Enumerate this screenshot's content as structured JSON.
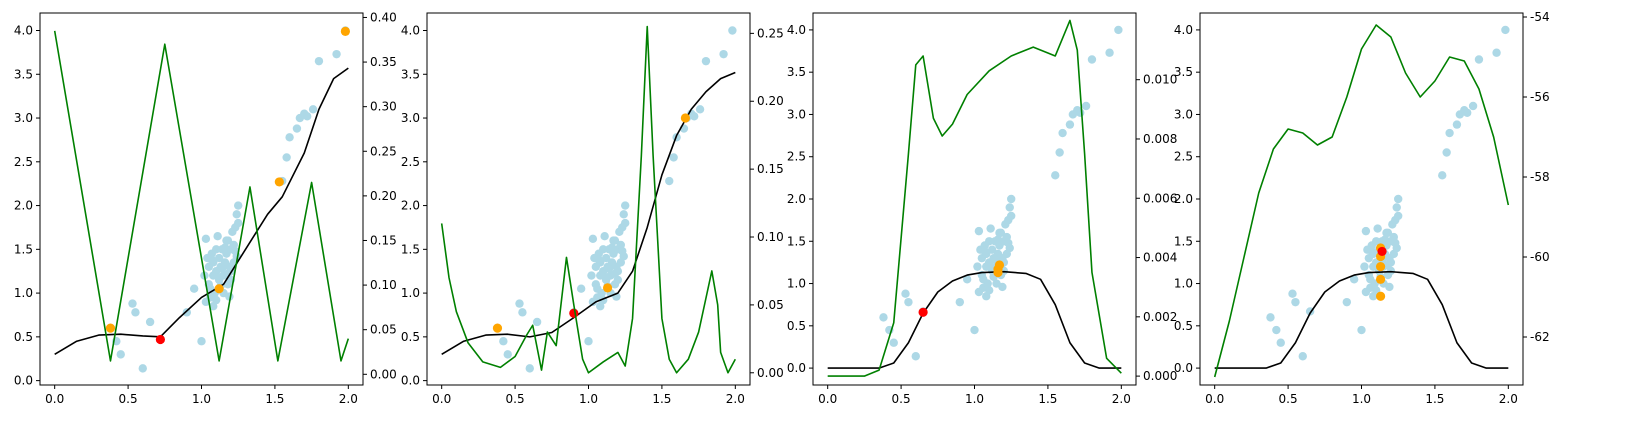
{
  "chart_data": [
    {
      "type": "line",
      "grid": false,
      "xlim": [
        -0.1,
        2.1
      ],
      "ylim": [
        -0.05,
        4.2
      ],
      "y2lim": [
        -0.012,
        0.405
      ],
      "x_ticks": [
        "0.0",
        "0.5",
        "1.0",
        "1.5",
        "2.0"
      ],
      "y_ticks": [
        "0.0",
        "0.5",
        "1.0",
        "1.5",
        "2.0",
        "2.5",
        "3.0",
        "3.5",
        "4.0"
      ],
      "y2_ticks": [
        "0.00",
        "0.05",
        "0.10",
        "0.15",
        "0.20",
        "0.25",
        "0.30",
        "0.35",
        "0.40"
      ],
      "colors": {
        "scatter": "#add8e6",
        "mean": "#000000",
        "acquisition": "#008000",
        "observed": "#ffa500",
        "next": "#ff0000"
      },
      "mean": {
        "x": [
          0.0,
          0.15,
          0.3,
          0.45,
          0.6,
          0.72,
          0.85,
          1.0,
          1.15,
          1.3,
          1.45,
          1.55,
          1.7,
          1.8,
          1.9,
          2.0
        ],
        "y": [
          0.3,
          0.45,
          0.52,
          0.53,
          0.51,
          0.5,
          0.72,
          0.95,
          1.1,
          1.5,
          1.9,
          2.1,
          2.6,
          3.1,
          3.45,
          3.57
        ]
      },
      "acquisition": {
        "x": [
          0.0,
          0.38,
          0.75,
          1.12,
          1.33,
          1.52,
          1.75,
          1.95,
          2.0
        ],
        "y": [
          0.385,
          0.015,
          0.37,
          0.015,
          0.21,
          0.015,
          0.215,
          0.015,
          0.04
        ]
      },
      "observed": {
        "x": [
          0.38,
          1.12,
          1.53,
          1.98
        ],
        "y": [
          0.6,
          1.05,
          2.27,
          3.99
        ]
      },
      "next": {
        "x": [
          0.72
        ],
        "y": [
          0.47
        ]
      }
    },
    {
      "type": "line",
      "grid": false,
      "xlim": [
        -0.1,
        2.1
      ],
      "ylim": [
        -0.05,
        4.2
      ],
      "y2lim": [
        -0.009,
        0.265
      ],
      "x_ticks": [
        "0.0",
        "0.5",
        "1.0",
        "1.5",
        "2.0"
      ],
      "y_ticks": [
        "0.0",
        "0.5",
        "1.0",
        "1.5",
        "2.0",
        "2.5",
        "3.0",
        "3.5",
        "4.0"
      ],
      "y2_ticks": [
        "0.00",
        "0.05",
        "0.10",
        "0.15",
        "0.20",
        "0.25"
      ],
      "colors": {
        "scatter": "#add8e6",
        "mean": "#000000",
        "acquisition": "#008000",
        "observed": "#ffa500",
        "next": "#ff0000"
      },
      "mean": {
        "x": [
          0.0,
          0.15,
          0.3,
          0.45,
          0.6,
          0.75,
          0.9,
          1.05,
          1.2,
          1.3,
          1.4,
          1.5,
          1.6,
          1.7,
          1.8,
          1.9,
          2.0
        ],
        "y": [
          0.3,
          0.45,
          0.52,
          0.53,
          0.5,
          0.55,
          0.72,
          0.9,
          1.0,
          1.25,
          1.75,
          2.35,
          2.8,
          3.1,
          3.3,
          3.45,
          3.52
        ]
      },
      "acquisition": {
        "x": [
          0.0,
          0.05,
          0.1,
          0.18,
          0.28,
          0.4,
          0.5,
          0.58,
          0.62,
          0.68,
          0.72,
          0.78,
          0.85,
          0.9,
          0.96,
          1.0,
          1.1,
          1.2,
          1.25,
          1.3,
          1.36,
          1.4,
          1.44,
          1.5,
          1.55,
          1.6,
          1.68,
          1.75,
          1.8,
          1.84,
          1.88,
          1.9,
          1.95,
          2.0
        ],
        "y": [
          0.11,
          0.07,
          0.045,
          0.022,
          0.008,
          0.004,
          0.012,
          0.028,
          0.035,
          0.002,
          0.03,
          0.02,
          0.085,
          0.05,
          0.01,
          0.0,
          0.008,
          0.015,
          0.005,
          0.04,
          0.16,
          0.255,
          0.16,
          0.04,
          0.01,
          0.0,
          0.01,
          0.03,
          0.055,
          0.075,
          0.05,
          0.015,
          0.0,
          0.01
        ]
      },
      "observed": {
        "x": [
          0.38,
          1.13,
          1.66
        ],
        "y": [
          0.6,
          1.06,
          3.0
        ]
      },
      "next": {
        "x": [
          0.9
        ],
        "y": [
          0.77
        ]
      }
    },
    {
      "type": "line",
      "grid": false,
      "xlim": [
        -0.1,
        2.1
      ],
      "ylim": [
        -0.2,
        4.2
      ],
      "y2lim": [
        -0.0003,
        0.01225
      ],
      "x_ticks": [
        "0.0",
        "0.5",
        "1.0",
        "1.5",
        "2.0"
      ],
      "y_ticks": [
        "0.0",
        "0.5",
        "1.0",
        "1.5",
        "2.0",
        "2.5",
        "3.0",
        "3.5",
        "4.0"
      ],
      "y2_ticks": [
        "0.000",
        "0.002",
        "0.004",
        "0.006",
        "0.008",
        "0.010"
      ],
      "colors": {
        "scatter": "#add8e6",
        "mean": "#000000",
        "acquisition": "#008000",
        "observed": "#ffa500",
        "next": "#ff0000"
      },
      "mean": {
        "x": [
          0.0,
          0.35,
          0.45,
          0.55,
          0.65,
          0.75,
          0.85,
          0.95,
          1.05,
          1.2,
          1.35,
          1.45,
          1.55,
          1.65,
          1.75,
          1.85,
          1.95,
          2.0
        ],
        "y": [
          0.0,
          0.0,
          0.06,
          0.3,
          0.65,
          0.9,
          1.03,
          1.1,
          1.13,
          1.14,
          1.12,
          1.05,
          0.75,
          0.3,
          0.06,
          0.0,
          0.0,
          0.0
        ]
      },
      "acquisition": {
        "x": [
          0.0,
          0.25,
          0.35,
          0.45,
          0.55,
          0.6,
          0.65,
          0.72,
          0.78,
          0.85,
          0.95,
          1.1,
          1.25,
          1.4,
          1.5,
          1.55,
          1.6,
          1.65,
          1.7,
          1.75,
          1.8,
          1.9,
          2.0
        ],
        "y": [
          0.0,
          0.0,
          0.0002,
          0.0018,
          0.0075,
          0.0105,
          0.0108,
          0.0087,
          0.0081,
          0.0085,
          0.0095,
          0.0103,
          0.0108,
          0.0111,
          0.0109,
          0.0108,
          0.0114,
          0.012,
          0.011,
          0.0075,
          0.0035,
          0.0006,
          0.0001
        ]
      },
      "observed": {
        "x": [
          1.16,
          1.16,
          1.17
        ],
        "y": [
          1.13,
          1.17,
          1.22
        ]
      },
      "next": {
        "x": [
          0.65
        ],
        "y": [
          0.66
        ]
      }
    },
    {
      "type": "line",
      "grid": false,
      "xlim": [
        -0.1,
        2.1
      ],
      "ylim": [
        -0.2,
        4.2
      ],
      "y2lim": [
        -63.2,
        -53.9
      ],
      "x_ticks": [
        "0.0",
        "0.5",
        "1.0",
        "1.5",
        "2.0"
      ],
      "y_ticks": [
        "0.0",
        "0.5",
        "1.0",
        "1.5",
        "2.0",
        "2.5",
        "3.0",
        "3.5",
        "4.0"
      ],
      "y2_ticks": [
        "-62",
        "-60",
        "-58",
        "-56",
        "-54"
      ],
      "colors": {
        "scatter": "#add8e6",
        "mean": "#000000",
        "acquisition": "#008000",
        "observed": "#ffa500",
        "next": "#ff0000"
      },
      "mean": {
        "x": [
          0.0,
          0.35,
          0.45,
          0.55,
          0.65,
          0.75,
          0.85,
          0.95,
          1.05,
          1.2,
          1.35,
          1.45,
          1.55,
          1.65,
          1.75,
          1.85,
          1.95,
          2.0
        ],
        "y": [
          0.0,
          0.0,
          0.06,
          0.3,
          0.65,
          0.9,
          1.03,
          1.1,
          1.13,
          1.14,
          1.12,
          1.05,
          0.75,
          0.3,
          0.06,
          0.0,
          0.0,
          0.0
        ]
      },
      "acquisition": {
        "x": [
          0.0,
          0.1,
          0.2,
          0.3,
          0.4,
          0.5,
          0.6,
          0.7,
          0.8,
          0.9,
          1.0,
          1.1,
          1.2,
          1.3,
          1.4,
          1.5,
          1.6,
          1.7,
          1.8,
          1.9,
          2.0
        ],
        "y": [
          -63.0,
          -61.6,
          -60.0,
          -58.4,
          -57.3,
          -56.8,
          -56.9,
          -57.2,
          -57.0,
          -56.0,
          -54.8,
          -54.2,
          -54.5,
          -55.4,
          -56.0,
          -55.6,
          -55.0,
          -55.1,
          -55.8,
          -57.0,
          -58.7
        ]
      },
      "observed": {
        "x": [
          1.13,
          1.13,
          1.13,
          1.13,
          1.13
        ],
        "y": [
          0.85,
          1.05,
          1.2,
          1.32,
          1.42
        ]
      },
      "next": {
        "x": [
          1.14
        ],
        "y": [
          1.38
        ]
      }
    }
  ],
  "shared_scatter": {
    "x": [
      0.38,
      0.42,
      0.45,
      0.53,
      0.55,
      0.6,
      0.65,
      0.9,
      0.95,
      1.0,
      1.02,
      1.03,
      1.05,
      1.05,
      1.06,
      1.07,
      1.08,
      1.08,
      1.09,
      1.1,
      1.1,
      1.11,
      1.12,
      1.12,
      1.13,
      1.14,
      1.15,
      1.15,
      1.16,
      1.17,
      1.18,
      1.18,
      1.19,
      1.2,
      1.2,
      1.21,
      1.22,
      1.22,
      1.23,
      1.24,
      1.25,
      1.25,
      1.04,
      1.06,
      1.1,
      1.14,
      1.17,
      1.2,
      1.24,
      1.08,
      1.13,
      1.16,
      1.19,
      1.03,
      1.07,
      1.12,
      1.18,
      1.23,
      1.55,
      1.58,
      1.6,
      1.65,
      1.67,
      1.7,
      1.72,
      1.76,
      1.8,
      1.92,
      1.98
    ],
    "y": [
      0.6,
      0.45,
      0.3,
      0.88,
      0.78,
      0.14,
      0.67,
      0.78,
      1.05,
      0.45,
      1.2,
      0.9,
      1.3,
      1.1,
      0.95,
      1.45,
      1.2,
      1.35,
      1.0,
      1.5,
      1.25,
      1.65,
      1.4,
      1.15,
      1.3,
      1.5,
      1.2,
      1.0,
      1.35,
      1.45,
      1.1,
      1.6,
      1.3,
      1.5,
      1.25,
      1.7,
      1.55,
      1.35,
      1.75,
      1.9,
      2.0,
      1.8,
      1.4,
      1.05,
      0.92,
      1.28,
      1.6,
      1.15,
      1.42,
      0.85,
      1.08,
      1.52,
      0.96,
      1.62,
      1.38,
      1.18,
      1.22,
      1.48,
      2.28,
      2.55,
      2.78,
      2.88,
      3.0,
      3.05,
      3.02,
      3.1,
      3.65,
      3.73,
      4.0
    ]
  }
}
